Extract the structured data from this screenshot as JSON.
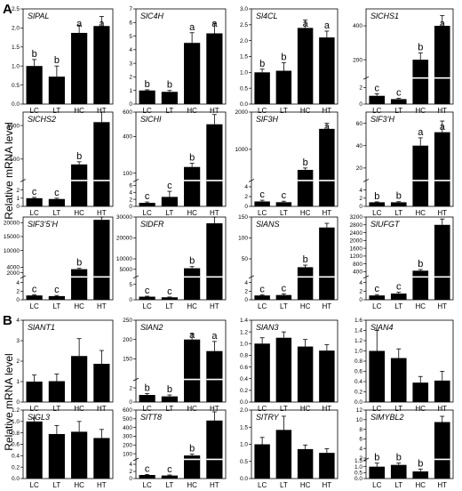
{
  "figure": {
    "panel_letters": [
      "A",
      "B"
    ],
    "ylabel_A": "Relative mRNA level",
    "ylabel_B": "Relative mRNA level",
    "colors": {
      "bar": "#000000",
      "axis": "#000000",
      "break": "#ffffff"
    }
  },
  "chart_data": [
    {
      "type": "bar",
      "group": "A",
      "title": "SlPAL",
      "categories": [
        "LC",
        "LT",
        "HC",
        "HT"
      ],
      "values": [
        1.0,
        0.72,
        1.87,
        2.05
      ],
      "errors": [
        0.17,
        0.28,
        0.2,
        0.25
      ],
      "significance": [
        "b",
        "b",
        "a",
        "a"
      ],
      "ylim": [
        0,
        2.5
      ],
      "yticks": [
        "0.0",
        "0.5",
        "1.0",
        "1.5",
        "2.0",
        "2.5"
      ]
    },
    {
      "type": "bar",
      "group": "A",
      "title": "SlC4H",
      "categories": [
        "LC",
        "LT",
        "HC",
        "HT"
      ],
      "values": [
        1.0,
        0.9,
        4.5,
        5.2
      ],
      "errors": [
        0.05,
        0.1,
        0.75,
        0.75
      ],
      "significance": [
        "b",
        "b",
        "a",
        "a"
      ],
      "ylim": [
        0,
        7
      ],
      "yticks": [
        "0",
        "1",
        "2",
        "3",
        "4",
        "5",
        "6",
        "7"
      ]
    },
    {
      "type": "bar",
      "group": "A",
      "title": "Sl4CL",
      "categories": [
        "LC",
        "LT",
        "HC",
        "HT"
      ],
      "values": [
        1.0,
        1.05,
        2.4,
        2.1
      ],
      "errors": [
        0.1,
        0.25,
        0.25,
        0.2
      ],
      "significance": [
        "b",
        "b",
        "a",
        "a"
      ],
      "ylim": [
        0,
        3.0
      ],
      "yticks": [
        "0.0",
        "0.5",
        "1.0",
        "1.5",
        "2.0",
        "2.5",
        "3.0"
      ]
    },
    {
      "type": "bar",
      "group": "A",
      "title": "SlCHS1",
      "categories": [
        "LC",
        "LT",
        "HC",
        "HT"
      ],
      "values": [
        1.0,
        0.6,
        200,
        400
      ],
      "errors": [
        0.25,
        0.1,
        40,
        60
      ],
      "significance": [
        "c",
        "c",
        "b",
        "a"
      ],
      "ylim": [
        0,
        500
      ],
      "yticks": [
        "0",
        "2",
        "200",
        "400"
      ],
      "axis_break": {
        "low": [
          0,
          3
        ],
        "high": [
          100,
          500
        ]
      }
    },
    {
      "type": "bar",
      "group": "A",
      "title": "SlCHS2",
      "categories": [
        "LC",
        "LT",
        "HC",
        "HT"
      ],
      "values": [
        1.0,
        0.9,
        420,
        1050
      ],
      "errors": [
        0.1,
        0.1,
        40,
        150
      ],
      "significance": [
        "c",
        "c",
        "b",
        "a"
      ],
      "ylim": [
        0,
        1200
      ],
      "yticks": [
        "0",
        "1",
        "2",
        "500",
        "1000"
      ],
      "axis_break": {
        "low": [
          0,
          3
        ],
        "high": [
          200,
          1200
        ]
      }
    },
    {
      "type": "bar",
      "group": "A",
      "title": "SlCHI",
      "categories": [
        "LC",
        "LT",
        "HC",
        "HT"
      ],
      "values": [
        1.0,
        2.7,
        150,
        500
      ],
      "errors": [
        0.25,
        1.6,
        30,
        80
      ],
      "significance": [
        "c",
        "c",
        "b",
        "a"
      ],
      "ylim": [
        0,
        600
      ],
      "yticks": [
        "0",
        "2",
        "4",
        "6",
        "100",
        "400",
        "600"
      ],
      "axis_break": {
        "low": [
          0,
          7
        ],
        "high": [
          50,
          600
        ]
      }
    },
    {
      "type": "bar",
      "group": "A",
      "title": "SlF3H",
      "categories": [
        "LC",
        "LT",
        "HC",
        "HT"
      ],
      "values": [
        1.0,
        0.85,
        450,
        1550
      ],
      "errors": [
        0.25,
        0.2,
        50,
        150
      ],
      "significance": [
        "c",
        "c",
        "b",
        "a"
      ],
      "ylim": [
        0,
        2000
      ],
      "yticks": [
        "0",
        "2",
        "4",
        "1000",
        "2000"
      ],
      "axis_break": {
        "low": [
          0,
          5
        ],
        "high": [
          200,
          2000
        ]
      }
    },
    {
      "type": "bar",
      "group": "A",
      "title": "SlF3’H",
      "categories": [
        "LC",
        "LT",
        "HC",
        "HT"
      ],
      "values": [
        1.0,
        1.0,
        40,
        52
      ],
      "errors": [
        0.1,
        0.15,
        7,
        10
      ],
      "significance": [
        "b",
        "b",
        "a",
        "a"
      ],
      "ylim": [
        0,
        70
      ],
      "yticks": [
        "0",
        "2",
        "4",
        "20",
        "40",
        "60"
      ],
      "axis_break": {
        "low": [
          0,
          6
        ],
        "high": [
          10,
          70
        ]
      }
    },
    {
      "type": "bar",
      "group": "A",
      "title": "SlF3’5’H",
      "categories": [
        "LC",
        "LT",
        "HC",
        "HT"
      ],
      "values": [
        1.0,
        0.85,
        3300,
        21000
      ],
      "errors": [
        0.15,
        0.15,
        300,
        2500
      ],
      "significance": [
        "c",
        "c",
        "b",
        "a"
      ],
      "ylim": [
        0,
        22000
      ],
      "yticks": [
        "0",
        "2",
        "4",
        "2000",
        "4000",
        "10000",
        "15000",
        "20000"
      ],
      "axis_break": {
        "low": [
          0,
          5
        ],
        "high": [
          1000,
          22000
        ]
      }
    },
    {
      "type": "bar",
      "group": "A",
      "title": "SlDFR",
      "categories": [
        "LC",
        "LT",
        "HC",
        "HT"
      ],
      "values": [
        1.0,
        0.8,
        5500,
        27000
      ],
      "errors": [
        0.15,
        0.1,
        800,
        3000
      ],
      "significance": [
        "c",
        "c",
        "b",
        "a"
      ],
      "ylim": [
        0,
        30000
      ],
      "yticks": [
        "0",
        "5",
        "5000",
        "10000",
        "20000",
        "30000"
      ],
      "axis_break": {
        "low": [
          0,
          7
        ],
        "high": [
          2000,
          30000
        ]
      }
    },
    {
      "type": "bar",
      "group": "A",
      "title": "SlANS",
      "categories": [
        "LC",
        "LT",
        "HC",
        "HT"
      ],
      "values": [
        1.0,
        1.1,
        30,
        125
      ],
      "errors": [
        0.15,
        0.25,
        5,
        10
      ],
      "significance": [
        "c",
        "c",
        "b",
        "a"
      ],
      "ylim": [
        0,
        150
      ],
      "yticks": [
        "0",
        "2",
        "4",
        "50",
        "100",
        "150"
      ],
      "axis_break": {
        "low": [
          0,
          5
        ],
        "high": [
          10,
          150
        ]
      }
    },
    {
      "type": "bar",
      "group": "A",
      "title": "SlUFGT",
      "categories": [
        "LC",
        "LT",
        "HC",
        "HT"
      ],
      "values": [
        1.0,
        1.45,
        450,
        2800
      ],
      "errors": [
        0.2,
        0.3,
        60,
        300
      ],
      "significance": [
        "c",
        "c",
        "b",
        "a"
      ],
      "ylim": [
        0,
        3200
      ],
      "yticks": [
        "0",
        "2",
        "4",
        "400",
        "800",
        "1200",
        "1600",
        "2000",
        "2400",
        "2800",
        "3200"
      ],
      "axis_break": {
        "low": [
          0,
          5
        ],
        "high": [
          200,
          3200
        ]
      }
    },
    {
      "type": "bar",
      "group": "B",
      "title": "SlANT1",
      "categories": [
        "LC",
        "LT",
        "HC",
        "HT"
      ],
      "values": [
        1.0,
        1.02,
        2.25,
        1.87
      ],
      "errors": [
        0.32,
        0.35,
        0.85,
        0.65
      ],
      "significance": [
        "",
        "",
        "",
        ""
      ],
      "ylim": [
        0,
        4
      ],
      "yticks": [
        "0",
        "1",
        "2",
        "3",
        "4"
      ]
    },
    {
      "type": "bar",
      "group": "B",
      "title": "SlAN2",
      "categories": [
        "LC",
        "LT",
        "HC",
        "HT"
      ],
      "values": [
        1.0,
        0.8,
        200,
        170
      ],
      "errors": [
        0.2,
        0.2,
        15,
        25
      ],
      "significance": [
        "b",
        "b",
        "a",
        "a"
      ],
      "ylim": [
        0,
        250
      ],
      "yticks": [
        "0",
        "2",
        "150",
        "200",
        "250"
      ],
      "axis_break": {
        "low": [
          0,
          3
        ],
        "high": [
          100,
          250
        ]
      }
    },
    {
      "type": "bar",
      "group": "B",
      "title": "SlAN3",
      "categories": [
        "LC",
        "LT",
        "HC",
        "HT"
      ],
      "values": [
        1.0,
        1.1,
        0.95,
        0.88
      ],
      "errors": [
        0.1,
        0.1,
        0.12,
        0.1
      ],
      "significance": [
        "",
        "",
        "",
        ""
      ],
      "ylim": [
        0,
        1.4
      ],
      "yticks": [
        "0.0",
        "0.2",
        "0.4",
        "0.6",
        "0.8",
        "1.0",
        "1.2",
        "1.4"
      ]
    },
    {
      "type": "bar",
      "group": "B",
      "title": "SlAN4",
      "categories": [
        "LC",
        "LT",
        "HC",
        "HT"
      ],
      "values": [
        1.0,
        0.86,
        0.38,
        0.42
      ],
      "errors": [
        0.4,
        0.18,
        0.12,
        0.18
      ],
      "significance": [
        "",
        "",
        "",
        ""
      ],
      "ylim": [
        0,
        1.6
      ],
      "yticks": [
        "0.0",
        "0.2",
        "0.4",
        "0.6",
        "0.8",
        "1.0",
        "1.2",
        "1.4",
        "1.6"
      ]
    },
    {
      "type": "bar",
      "group": "B",
      "title": "SlGL3",
      "categories": [
        "LC",
        "LT",
        "HC",
        "HT"
      ],
      "values": [
        1.0,
        0.78,
        0.82,
        0.71
      ],
      "errors": [
        0.06,
        0.15,
        0.18,
        0.15
      ],
      "significance": [
        "",
        "",
        "",
        ""
      ],
      "ylim": [
        0,
        1.2
      ],
      "yticks": [
        "0.0",
        "0.2",
        "0.4",
        "0.6",
        "0.8",
        "1.0",
        "1.2"
      ]
    },
    {
      "type": "bar",
      "group": "B",
      "title": "SlTT8",
      "categories": [
        "LC",
        "LT",
        "HC",
        "HT"
      ],
      "values": [
        1.0,
        0.85,
        80,
        480
      ],
      "errors": [
        0.15,
        0.15,
        15,
        100
      ],
      "significance": [
        "c",
        "c",
        "b",
        "a"
      ],
      "ylim": [
        0,
        600
      ],
      "yticks": [
        "0",
        "2",
        "4",
        "100",
        "200",
        "300",
        "400",
        "500",
        "600"
      ],
      "axis_break": {
        "low": [
          0,
          5
        ],
        "high": [
          50,
          600
        ]
      }
    },
    {
      "type": "bar",
      "group": "B",
      "title": "SlTRY",
      "categories": [
        "LC",
        "LT",
        "HC",
        "HT"
      ],
      "values": [
        1.0,
        1.42,
        0.86,
        0.75
      ],
      "errors": [
        0.2,
        0.4,
        0.12,
        0.12
      ],
      "significance": [
        "",
        "",
        "",
        ""
      ],
      "ylim": [
        0,
        2.0
      ],
      "yticks": [
        "0.0",
        "0.5",
        "1.0",
        "1.5",
        "2.0"
      ]
    },
    {
      "type": "bar",
      "group": "B",
      "title": "SlMYBL2",
      "categories": [
        "LC",
        "LT",
        "HC",
        "HT"
      ],
      "values": [
        1.0,
        1.15,
        0.6,
        9.5
      ],
      "errors": [
        0.3,
        0.15,
        0.2,
        1.2
      ],
      "significance": [
        "b",
        "b",
        "b",
        "a"
      ],
      "ylim": [
        0,
        12
      ],
      "yticks": [
        "0.0",
        "0.5",
        "1.0",
        "1.5",
        "2",
        "4",
        "6",
        "8",
        "10",
        "12"
      ],
      "axis_break": {
        "low": [
          0,
          1.5
        ],
        "high": [
          2,
          12
        ]
      }
    }
  ]
}
